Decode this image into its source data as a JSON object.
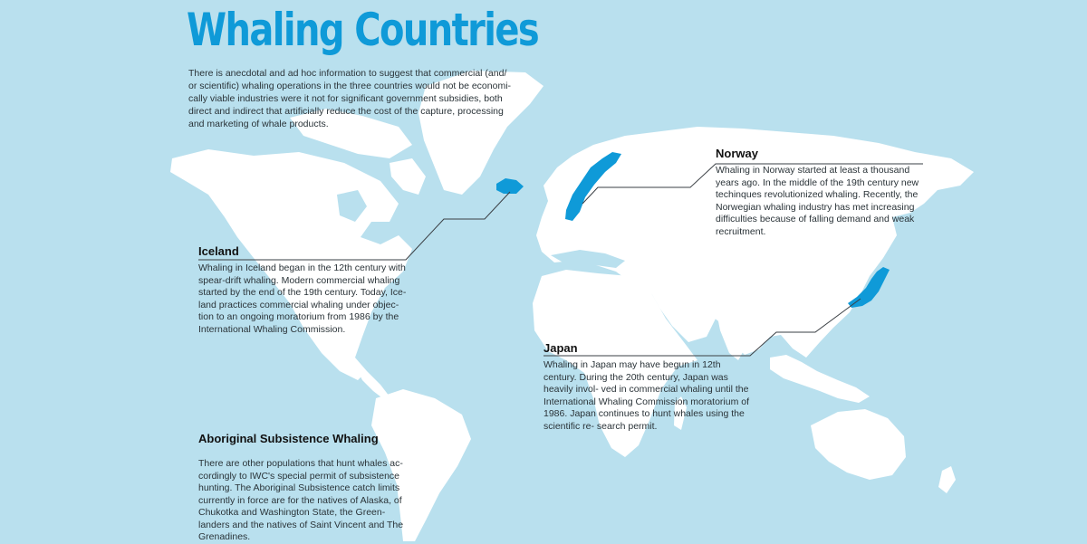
{
  "page": {
    "title": "Whaling Countries",
    "intro": "There is anecdotal and ad hoc information to suggest that commercial (and/ or scientific) whaling operations in the three countries would not be economi- cally viable industries were it not for significant government subsidies, both direct and indirect that artificially reduce the cost of the capture, processing and marketing of whale products."
  },
  "colors": {
    "ocean": "#b9e0ee",
    "land": "#ffffff",
    "highlight": "#0f9ad8",
    "title": "#0f9ad8"
  },
  "map": {
    "highlighted_countries": [
      "Iceland",
      "Norway",
      "Japan"
    ]
  },
  "callouts": {
    "iceland": {
      "heading": "Iceland",
      "text": "Whaling in Iceland began in the 12th century with spear-drift whaling. Modern commercial whaling started by the end of the 19th century. Today, Ice- land practices commercial whaling under objec- tion to an ongoing moratorium from 1986 by the International Whaling Commission."
    },
    "norway": {
      "heading": "Norway",
      "text": "Whaling in Norway started at least a thousand years ago. In the middle of the 19th century new techinques revolutionized whaling. Recently, the Norwegian whaling industry has met increasing difficulties because of falling demand and weak recruitment."
    },
    "japan": {
      "heading": "Japan",
      "text": "Whaling in Japan may have begun in 12th century. During the 20th century, Japan was heavily invol- ved in commercial whaling until the International Whaling Commission moratorium of 1986. Japan continues to hunt whales using the scientific re- search permit."
    },
    "aboriginal": {
      "heading": "Aboriginal Subsistence Whaling",
      "text": "There are other populations that hunt whales ac- cordingly to IWC's special permit of subsistence hunting. The Aboriginal Subsistence catch limits currently in force are for the natives of Alaska, of Chukotka and Washington State, the Green- landers and the natives of Saint Vincent and The Grenadines."
    }
  }
}
